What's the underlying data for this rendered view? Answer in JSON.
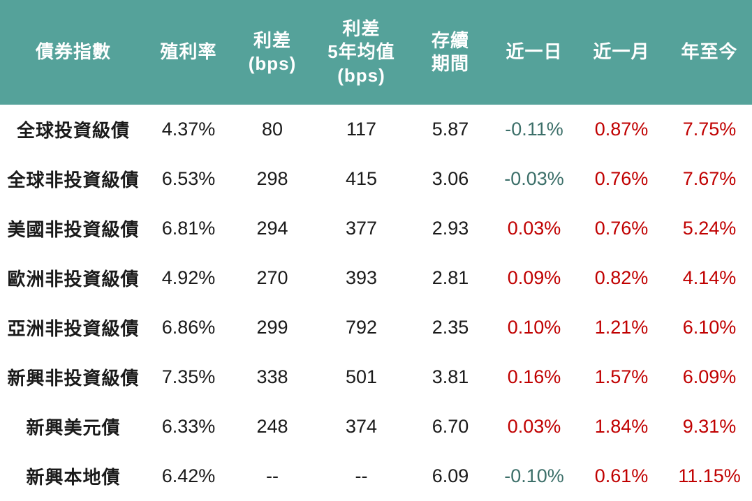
{
  "colors": {
    "header_bg": "#55A29A",
    "header_text": "#FFFFFF",
    "positive_change": "#C00000",
    "negative_change": "#3C6F69",
    "body_text": "#1A1A1A"
  },
  "table": {
    "columns": [
      {
        "id": "name",
        "lines": [
          "債券指數"
        ]
      },
      {
        "id": "yield",
        "lines": [
          "殖利率"
        ]
      },
      {
        "id": "spread",
        "lines": [
          "利差",
          "(bps)"
        ]
      },
      {
        "id": "spread5y",
        "lines": [
          "利差",
          "5年均值",
          "(bps)"
        ]
      },
      {
        "id": "duration",
        "lines": [
          "存續",
          "期間"
        ]
      },
      {
        "id": "day",
        "lines": [
          "近一日"
        ]
      },
      {
        "id": "month",
        "lines": [
          "近一月"
        ]
      },
      {
        "id": "ytd",
        "lines": [
          "年至今"
        ]
      }
    ],
    "change_columns": [
      "day",
      "month",
      "ytd"
    ],
    "rows": [
      {
        "name": "全球投資級債",
        "yield": "4.37%",
        "spread": "80",
        "spread5y": "117",
        "duration": "5.87",
        "day": "-0.11%",
        "month": "0.87%",
        "ytd": "7.75%"
      },
      {
        "name": "全球非投資級債",
        "yield": "6.53%",
        "spread": "298",
        "spread5y": "415",
        "duration": "3.06",
        "day": "-0.03%",
        "month": "0.76%",
        "ytd": "7.67%"
      },
      {
        "name": "美國非投資級債",
        "yield": "6.81%",
        "spread": "294",
        "spread5y": "377",
        "duration": "2.93",
        "day": "0.03%",
        "month": "0.76%",
        "ytd": "5.24%"
      },
      {
        "name": "歐洲非投資級債",
        "yield": "4.92%",
        "spread": "270",
        "spread5y": "393",
        "duration": "2.81",
        "day": "0.09%",
        "month": "0.82%",
        "ytd": "4.14%"
      },
      {
        "name": "亞洲非投資級債",
        "yield": "6.86%",
        "spread": "299",
        "spread5y": "792",
        "duration": "2.35",
        "day": "0.10%",
        "month": "1.21%",
        "ytd": "6.10%"
      },
      {
        "name": "新興非投資級債",
        "yield": "7.35%",
        "spread": "338",
        "spread5y": "501",
        "duration": "3.81",
        "day": "0.16%",
        "month": "1.57%",
        "ytd": "6.09%"
      },
      {
        "name": "新興美元債",
        "yield": "6.33%",
        "spread": "248",
        "spread5y": "374",
        "duration": "6.70",
        "day": "0.03%",
        "month": "1.84%",
        "ytd": "9.31%"
      },
      {
        "name": "新興本地債",
        "yield": "6.42%",
        "spread": "--",
        "spread5y": "--",
        "duration": "6.09",
        "day": "-0.10%",
        "month": "0.61%",
        "ytd": "11.15%"
      }
    ]
  }
}
